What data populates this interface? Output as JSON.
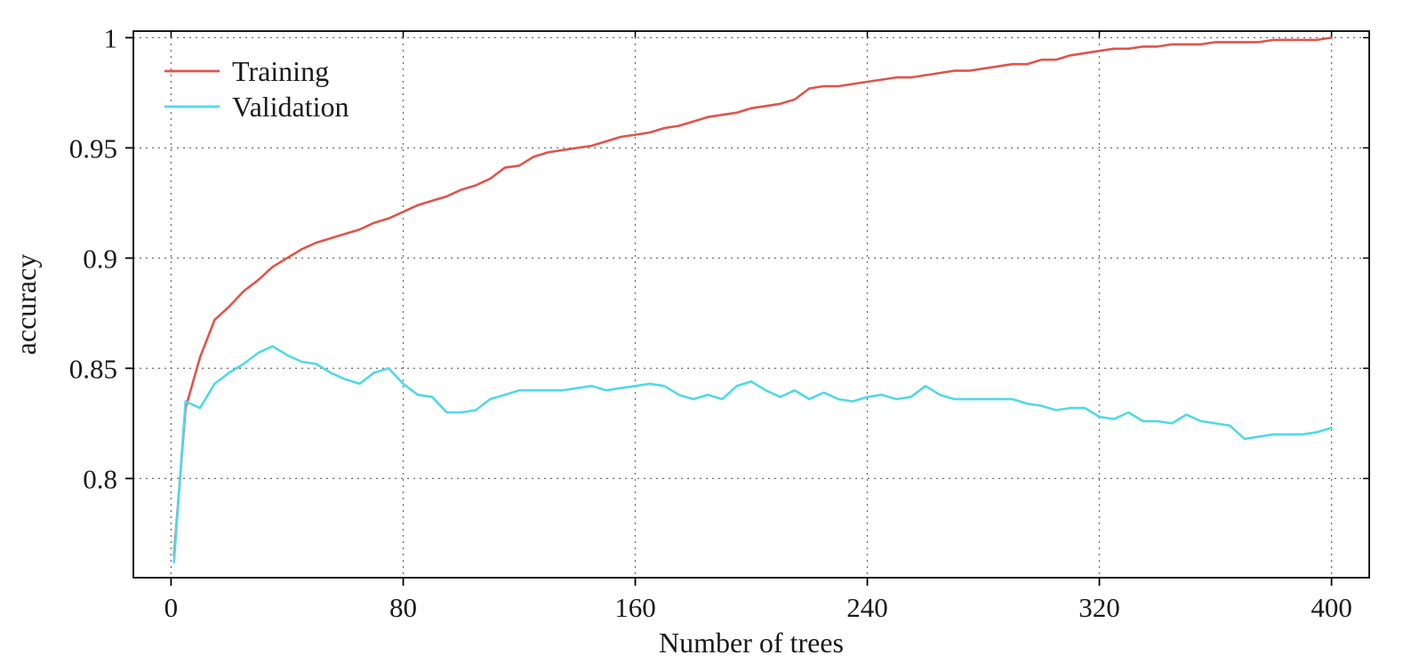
{
  "chart_data": {
    "type": "line",
    "title": "",
    "xlabel": "Number of trees",
    "ylabel": "accuracy",
    "xlim": [
      -13,
      413
    ],
    "ylim": [
      0.755,
      1.003
    ],
    "x_ticks": [
      0,
      80,
      160,
      240,
      320,
      400
    ],
    "x_tick_labels": [
      "0",
      "80",
      "160",
      "240",
      "320",
      "400"
    ],
    "y_ticks": [
      0.8,
      0.85,
      0.9,
      0.95,
      1
    ],
    "y_tick_labels": [
      "0.8",
      "0.85",
      "0.9",
      "0.95",
      "1"
    ],
    "grid": "dotted",
    "legend_position": "top-left",
    "x": [
      1,
      5,
      10,
      15,
      20,
      25,
      30,
      35,
      40,
      45,
      50,
      55,
      60,
      65,
      70,
      75,
      80,
      85,
      90,
      95,
      100,
      105,
      110,
      115,
      120,
      125,
      130,
      135,
      140,
      145,
      150,
      155,
      160,
      165,
      170,
      175,
      180,
      185,
      190,
      195,
      200,
      205,
      210,
      215,
      220,
      225,
      230,
      235,
      240,
      245,
      250,
      255,
      260,
      265,
      270,
      275,
      280,
      285,
      290,
      295,
      300,
      305,
      310,
      315,
      320,
      325,
      330,
      335,
      340,
      345,
      350,
      355,
      360,
      365,
      370,
      375,
      380,
      385,
      390,
      395,
      400
    ],
    "series": [
      {
        "name": "Training",
        "color": "#e0544a",
        "values": [
          0.765,
          0.832,
          0.855,
          0.872,
          0.878,
          0.885,
          0.89,
          0.896,
          0.9,
          0.904,
          0.907,
          0.909,
          0.911,
          0.913,
          0.916,
          0.918,
          0.921,
          0.924,
          0.926,
          0.928,
          0.931,
          0.933,
          0.936,
          0.941,
          0.942,
          0.946,
          0.948,
          0.949,
          0.95,
          0.951,
          0.953,
          0.955,
          0.956,
          0.957,
          0.959,
          0.96,
          0.962,
          0.964,
          0.965,
          0.966,
          0.968,
          0.969,
          0.97,
          0.972,
          0.977,
          0.978,
          0.978,
          0.979,
          0.98,
          0.981,
          0.982,
          0.982,
          0.983,
          0.984,
          0.985,
          0.985,
          0.986,
          0.987,
          0.988,
          0.988,
          0.99,
          0.99,
          0.992,
          0.993,
          0.994,
          0.995,
          0.995,
          0.996,
          0.996,
          0.997,
          0.997,
          0.997,
          0.998,
          0.998,
          0.998,
          0.998,
          0.999,
          0.999,
          0.999,
          0.999,
          1.0
        ]
      },
      {
        "name": "Validation",
        "color": "#4fd9e8",
        "values": [
          0.762,
          0.835,
          0.832,
          0.843,
          0.848,
          0.852,
          0.857,
          0.86,
          0.856,
          0.853,
          0.852,
          0.848,
          0.845,
          0.843,
          0.848,
          0.85,
          0.843,
          0.838,
          0.837,
          0.83,
          0.83,
          0.831,
          0.836,
          0.838,
          0.84,
          0.84,
          0.84,
          0.84,
          0.841,
          0.842,
          0.84,
          0.841,
          0.842,
          0.843,
          0.842,
          0.838,
          0.836,
          0.838,
          0.836,
          0.842,
          0.844,
          0.84,
          0.837,
          0.84,
          0.836,
          0.839,
          0.836,
          0.835,
          0.837,
          0.838,
          0.836,
          0.837,
          0.842,
          0.838,
          0.836,
          0.836,
          0.836,
          0.836,
          0.836,
          0.834,
          0.833,
          0.831,
          0.832,
          0.832,
          0.828,
          0.827,
          0.83,
          0.826,
          0.826,
          0.825,
          0.829,
          0.826,
          0.825,
          0.824,
          0.818,
          0.819,
          0.82,
          0.82,
          0.82,
          0.821,
          0.823
        ]
      }
    ]
  },
  "colors": {
    "axis": "#000000",
    "grid": "#6e6e6e",
    "background": "#ffffff",
    "text": "#1a1a1a"
  }
}
